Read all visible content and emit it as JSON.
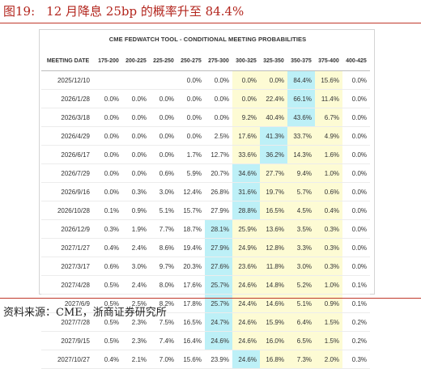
{
  "figure": {
    "number": "图19:",
    "title": "12 月降息 25bp 的概率升至 84.4%"
  },
  "tool_title": "CME FEDWATCH TOOL - CONDITIONAL MEETING PROBABILITIES",
  "table": {
    "columns": [
      "MEETING DATE",
      "175-200",
      "200-225",
      "225-250",
      "250-275",
      "275-300",
      "300-325",
      "325-350",
      "350-375",
      "375-400",
      "400-425"
    ],
    "rows": [
      {
        "date": "2025/12/10",
        "values": [
          "",
          "",
          "",
          "0.0%",
          "0.0%",
          "0.0%",
          "0.0%",
          "84.4%",
          "15.6%",
          "0.0%"
        ],
        "highlight": 7
      },
      {
        "date": "2026/1/28",
        "values": [
          "0.0%",
          "0.0%",
          "0.0%",
          "0.0%",
          "0.0%",
          "0.0%",
          "22.4%",
          "66.1%",
          "11.4%",
          "0.0%"
        ],
        "highlight": 7
      },
      {
        "date": "2026/3/18",
        "values": [
          "0.0%",
          "0.0%",
          "0.0%",
          "0.0%",
          "0.0%",
          "9.2%",
          "40.4%",
          "43.6%",
          "6.7%",
          "0.0%"
        ],
        "highlight": 7
      },
      {
        "date": "2026/4/29",
        "values": [
          "0.0%",
          "0.0%",
          "0.0%",
          "0.0%",
          "2.5%",
          "17.6%",
          "41.3%",
          "33.7%",
          "4.9%",
          "0.0%"
        ],
        "highlight": 6
      },
      {
        "date": "2026/6/17",
        "values": [
          "0.0%",
          "0.0%",
          "0.0%",
          "1.7%",
          "12.7%",
          "33.6%",
          "36.2%",
          "14.3%",
          "1.6%",
          "0.0%"
        ],
        "highlight": 6
      },
      {
        "date": "2026/7/29",
        "values": [
          "0.0%",
          "0.0%",
          "0.6%",
          "5.9%",
          "20.7%",
          "34.6%",
          "27.7%",
          "9.4%",
          "1.0%",
          "0.0%"
        ],
        "highlight": 5
      },
      {
        "date": "2026/9/16",
        "values": [
          "0.0%",
          "0.3%",
          "3.0%",
          "12.4%",
          "26.8%",
          "31.6%",
          "19.7%",
          "5.7%",
          "0.6%",
          "0.0%"
        ],
        "highlight": 5
      },
      {
        "date": "2026/10/28",
        "values": [
          "0.1%",
          "0.9%",
          "5.1%",
          "15.7%",
          "27.9%",
          "28.8%",
          "16.5%",
          "4.5%",
          "0.4%",
          "0.0%"
        ],
        "highlight": 5
      },
      {
        "date": "2026/12/9",
        "values": [
          "0.3%",
          "1.9%",
          "7.7%",
          "18.7%",
          "28.1%",
          "25.9%",
          "13.6%",
          "3.5%",
          "0.3%",
          "0.0%"
        ],
        "highlight": 4
      },
      {
        "date": "2027/1/27",
        "values": [
          "0.4%",
          "2.4%",
          "8.6%",
          "19.4%",
          "27.9%",
          "24.9%",
          "12.8%",
          "3.3%",
          "0.3%",
          "0.0%"
        ],
        "highlight": 4
      },
      {
        "date": "2027/3/17",
        "values": [
          "0.6%",
          "3.0%",
          "9.7%",
          "20.3%",
          "27.6%",
          "23.6%",
          "11.8%",
          "3.0%",
          "0.3%",
          "0.0%"
        ],
        "highlight": 4
      },
      {
        "date": "2027/4/28",
        "values": [
          "0.5%",
          "2.4%",
          "8.0%",
          "17.6%",
          "25.7%",
          "24.6%",
          "14.8%",
          "5.2%",
          "1.0%",
          "0.1%"
        ],
        "highlight": 4
      },
      {
        "date": "2027/6/9",
        "values": [
          "0.5%",
          "2.5%",
          "8.2%",
          "17.8%",
          "25.7%",
          "24.4%",
          "14.6%",
          "5.1%",
          "0.9%",
          "0.1%"
        ],
        "highlight": 4
      },
      {
        "date": "2027/7/28",
        "values": [
          "0.5%",
          "2.3%",
          "7.5%",
          "16.5%",
          "24.7%",
          "24.6%",
          "15.9%",
          "6.4%",
          "1.5%",
          "0.2%"
        ],
        "highlight": 4
      },
      {
        "date": "2027/9/15",
        "values": [
          "0.5%",
          "2.3%",
          "7.4%",
          "16.4%",
          "24.6%",
          "24.6%",
          "16.0%",
          "6.5%",
          "1.5%",
          "0.2%"
        ],
        "highlight": 4
      },
      {
        "date": "2027/10/27",
        "values": [
          "0.4%",
          "2.1%",
          "7.0%",
          "15.6%",
          "23.9%",
          "24.6%",
          "16.8%",
          "7.3%",
          "2.0%",
          "0.3%"
        ],
        "highlight": 5
      }
    ],
    "colors": {
      "highlight": "#bdf0f7",
      "shaded": "#fdfbd4"
    }
  },
  "source": "资料来源：CME，浙商证券研究所"
}
